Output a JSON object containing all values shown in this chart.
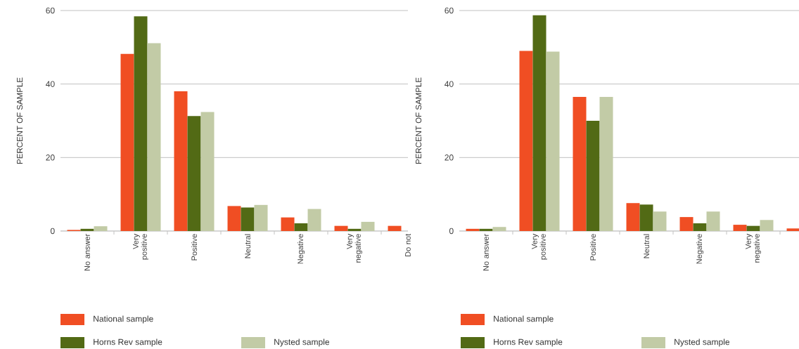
{
  "chart_data": [
    {
      "type": "bar",
      "ylabel": "PERCENT OF SAMPLE",
      "categories": [
        "No answer",
        "Very positive",
        "Positive",
        "Neutral",
        "Negative",
        "Very negative",
        "Do not"
      ],
      "ylim": [
        0,
        60
      ],
      "yticks": [
        0,
        20,
        40,
        60
      ],
      "grid": "y",
      "legend": "bottom",
      "series": [
        {
          "name": "National sample",
          "color": "#f04e23",
          "values": [
            0.3,
            48.2,
            38.0,
            6.8,
            3.7,
            1.4,
            1.4
          ]
        },
        {
          "name": "Horns Rev sample",
          "color": "#526a15",
          "values": [
            0.6,
            58.4,
            31.3,
            6.4,
            2.1,
            0.6,
            null
          ]
        },
        {
          "name": "Nysted sample",
          "color": "#c2cba6",
          "values": [
            1.3,
            51.1,
            32.4,
            7.1,
            6.0,
            2.5,
            null
          ]
        }
      ]
    },
    {
      "type": "bar",
      "ylabel": "PERCENT OF SAMPLE",
      "categories": [
        "No answer",
        "Very positive",
        "Positive",
        "Neutral",
        "Negative",
        "Very negative",
        null
      ],
      "ylim": [
        0,
        60
      ],
      "yticks": [
        0,
        20,
        40,
        60
      ],
      "grid": "y",
      "legend": "bottom",
      "series": [
        {
          "name": "National sample",
          "color": "#f04e23",
          "values": [
            0.6,
            49.0,
            36.5,
            7.6,
            3.8,
            1.7,
            0.7
          ]
        },
        {
          "name": "Horns Rev sample",
          "color": "#526a15",
          "values": [
            0.6,
            58.7,
            30.0,
            7.2,
            2.1,
            1.4,
            null
          ]
        },
        {
          "name": "Nysted sample",
          "color": "#c2cba6",
          "values": [
            1.1,
            48.8,
            36.5,
            5.3,
            5.3,
            3.0,
            null
          ]
        }
      ]
    }
  ]
}
